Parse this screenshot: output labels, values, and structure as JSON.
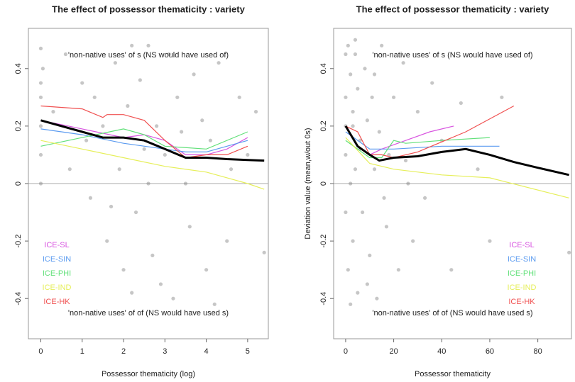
{
  "chart_data": [
    {
      "type": "scatter",
      "title": "The effect of possessor thematicity : variety",
      "x_label": "Possessor thematicity (log)",
      "xlim": [
        -0.3,
        5.5
      ],
      "xticks": [
        0,
        1,
        2,
        3,
        4,
        5
      ],
      "ylim": [
        -0.54,
        0.54
      ],
      "yticks": [
        -0.4,
        -0.2,
        0.0,
        0.2,
        0.4
      ],
      "reference_line": 0,
      "annotations": [
        "'non-native uses' of s (NS would have used of)",
        "'non-native uses' of of (NS would have used s)"
      ],
      "legend": "bottom-left",
      "point_color": "#808080",
      "x": [
        0,
        0,
        0,
        0,
        0,
        0,
        0.05,
        0.3,
        0.6,
        0.7,
        1.0,
        1.1,
        1.2,
        1.3,
        1.5,
        1.6,
        1.8,
        1.9,
        2.0,
        2.1,
        2.2,
        2.3,
        2.4,
        2.5,
        2.6,
        2.7,
        2.8,
        2.9,
        3.0,
        3.1,
        3.2,
        3.3,
        3.5,
        3.6,
        3.7,
        3.9,
        4.0,
        4.1,
        4.3,
        4.5,
        4.6,
        4.8,
        5.0,
        5.2,
        5.4,
        2.2,
        2.6,
        3.4,
        1.7,
        4.2
      ],
      "y": [
        0.47,
        0.35,
        0.3,
        0.2,
        0.1,
        0.0,
        0.4,
        0.25,
        0.45,
        0.05,
        0.35,
        0.15,
        -0.05,
        0.3,
        0.2,
        -0.2,
        0.42,
        0.05,
        -0.3,
        0.27,
        0.48,
        -0.1,
        0.36,
        0.12,
        0.48,
        -0.25,
        0.2,
        -0.35,
        0.1,
        0.45,
        -0.4,
        0.3,
        0.0,
        -0.15,
        0.38,
        0.22,
        -0.3,
        0.15,
        0.42,
        -0.2,
        0.05,
        0.3,
        0.1,
        0.25,
        -0.24,
        -0.38,
        0.0,
        0.18,
        -0.08,
        -0.42
      ],
      "series": [
        {
          "name": "ICE-SL",
          "color": "#d855e0",
          "x": [
            0,
            1,
            2,
            2.5,
            3,
            3.5,
            4,
            4.5,
            5
          ],
          "values": [
            0.22,
            0.19,
            0.16,
            0.17,
            0.15,
            0.1,
            0.1,
            0.12,
            0.16
          ]
        },
        {
          "name": "ICE-SIN",
          "color": "#5b9bf0",
          "x": [
            0,
            1,
            2,
            3,
            3.5,
            4,
            5
          ],
          "values": [
            0.19,
            0.17,
            0.14,
            0.12,
            0.11,
            0.11,
            0.15
          ]
        },
        {
          "name": "ICE-PHI",
          "color": "#62e07a",
          "x": [
            0,
            1,
            2,
            2.5,
            3,
            4,
            5
          ],
          "values": [
            0.13,
            0.16,
            0.19,
            0.17,
            0.13,
            0.12,
            0.18
          ]
        },
        {
          "name": "ICE-IND",
          "color": "#e6ef5a",
          "x": [
            0,
            1,
            2,
            3,
            4,
            5,
            5.4
          ],
          "values": [
            0.15,
            0.12,
            0.09,
            0.06,
            0.04,
            0.0,
            -0.02
          ]
        },
        {
          "name": "ICE-HK",
          "color": "#f05050",
          "x": [
            0,
            1,
            1.5,
            1.6,
            2,
            2.5,
            3,
            3.5,
            4,
            4.5,
            5
          ],
          "values": [
            0.27,
            0.26,
            0.23,
            0.24,
            0.24,
            0.22,
            0.15,
            0.09,
            0.1,
            0.1,
            0.13
          ]
        }
      ],
      "overall": {
        "color": "#000000",
        "x": [
          0,
          1,
          1.5,
          2,
          2.5,
          3,
          3.5,
          4,
          4.5,
          5,
          5.4
        ],
        "values": [
          0.22,
          0.18,
          0.16,
          0.16,
          0.15,
          0.12,
          0.09,
          0.09,
          0.085,
          0.082,
          0.08
        ]
      }
    },
    {
      "type": "scatter",
      "title": "The effect of possessor thematicity : variety",
      "x_label": "Possessor thematicity",
      "y_label": "Deviation value (mean,w/out 0s)",
      "xlim": [
        -5,
        94
      ],
      "xticks": [
        0,
        20,
        40,
        60,
        80
      ],
      "ylim": [
        -0.54,
        0.54
      ],
      "yticks": [
        -0.4,
        -0.2,
        0.0,
        0.2,
        0.4
      ],
      "reference_line": 0,
      "annotations": [
        "'non-native uses' of s (NS would have used of)",
        "'non-native uses' of of (NS would have used s)"
      ],
      "legend": "bottom-right",
      "point_color": "#808080",
      "x": [
        0,
        0,
        0,
        0,
        0,
        1,
        1,
        2,
        2,
        3,
        3,
        4,
        4,
        5,
        5,
        6,
        7,
        8,
        9,
        10,
        11,
        12,
        13,
        14,
        15,
        17,
        18,
        20,
        22,
        24,
        26,
        28,
        30,
        33,
        36,
        40,
        44,
        48,
        55,
        60,
        65,
        93,
        2,
        6,
        9,
        12,
        3,
        16,
        25,
        4
      ],
      "y": [
        0.45,
        0.3,
        0.1,
        -0.1,
        0.2,
        0.48,
        -0.3,
        0.38,
        0.0,
        0.25,
        -0.2,
        0.45,
        0.05,
        0.33,
        -0.38,
        0.15,
        -0.1,
        0.4,
        0.22,
        -0.25,
        0.3,
        0.05,
        -0.4,
        0.18,
        0.48,
        -0.15,
        0.1,
        0.3,
        -0.3,
        0.42,
        0.0,
        -0.2,
        0.25,
        -0.05,
        0.35,
        0.15,
        -0.3,
        0.28,
        0.05,
        -0.2,
        0.3,
        -0.24,
        -0.42,
        0.12,
        -0.35,
        0.38,
        0.2,
        -0.05,
        0.08,
        0.5
      ],
      "series": [
        {
          "name": "ICE-SL",
          "color": "#d855e0",
          "x": [
            0,
            5,
            10,
            15,
            25,
            35,
            45
          ],
          "values": [
            0.2,
            0.13,
            0.1,
            0.12,
            0.15,
            0.18,
            0.2
          ]
        },
        {
          "name": "ICE-SIN",
          "color": "#5b9bf0",
          "x": [
            0,
            10,
            20,
            40,
            64
          ],
          "values": [
            0.18,
            0.12,
            0.12,
            0.13,
            0.13
          ]
        },
        {
          "name": "ICE-PHI",
          "color": "#62e07a",
          "x": [
            0,
            10,
            15,
            20,
            25,
            40,
            60
          ],
          "values": [
            0.15,
            0.09,
            0.09,
            0.15,
            0.14,
            0.15,
            0.16
          ]
        },
        {
          "name": "ICE-IND",
          "color": "#e6ef5a",
          "x": [
            0,
            10,
            20,
            40,
            60,
            93
          ],
          "values": [
            0.16,
            0.07,
            0.05,
            0.03,
            0.02,
            -0.05
          ]
        },
        {
          "name": "ICE-HK",
          "color": "#f05050",
          "x": [
            0,
            5,
            10,
            15,
            20,
            30,
            50,
            70
          ],
          "values": [
            0.2,
            0.18,
            0.1,
            0.1,
            0.09,
            0.11,
            0.18,
            0.27
          ]
        }
      ],
      "overall": {
        "color": "#000000",
        "x": [
          0,
          5,
          10,
          14,
          20,
          30,
          40,
          50,
          60,
          70,
          80,
          93
        ],
        "values": [
          0.2,
          0.13,
          0.1,
          0.08,
          0.09,
          0.095,
          0.11,
          0.12,
          0.1,
          0.075,
          0.055,
          0.03
        ]
      }
    }
  ]
}
